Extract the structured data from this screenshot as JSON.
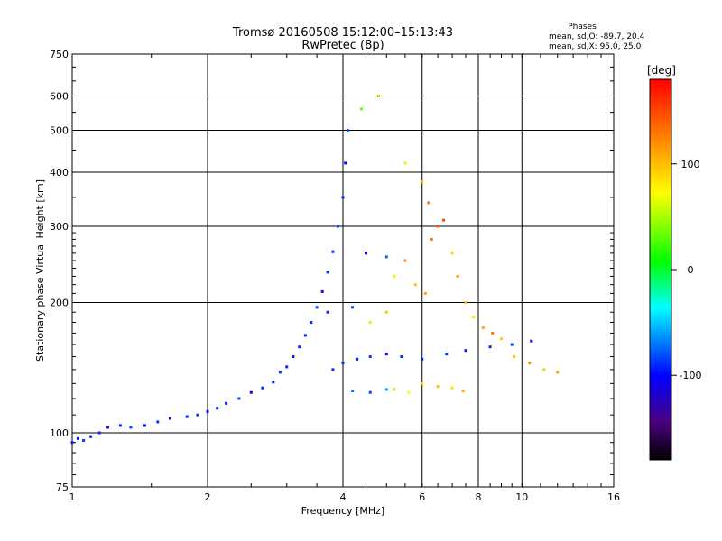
{
  "chart_data": {
    "type": "scatter",
    "title": "Tromsø 20160508 15:12:00–15:13:43",
    "subtitle": "RwPretec (8p)",
    "xlabel": "Frequency [MHz]",
    "ylabel": "Stationary phase Virtual Height [km]",
    "x_scale": "log",
    "y_scale": "log",
    "xlim": [
      1,
      16
    ],
    "ylim": [
      75,
      750
    ],
    "x_ticks": [
      1,
      2,
      4,
      6,
      8,
      10,
      16
    ],
    "y_ticks": [
      75,
      100,
      200,
      300,
      400,
      500,
      600,
      750
    ],
    "x_gridlines": [
      2,
      4,
      6,
      8,
      10
    ],
    "y_gridlines": [
      100,
      200,
      300,
      400,
      500,
      600
    ],
    "grid": true,
    "phases_box": {
      "title": "Phases",
      "line1": "mean, sd,O: -89.7, 20.4",
      "line2": "mean, sd,X:  95.0, 25.0"
    },
    "colorbar": {
      "label": "[deg]",
      "range": [
        -180,
        180
      ],
      "ticks": [
        100,
        0,
        -100
      ],
      "colors": [
        "#000000",
        "#4a0080",
        "#0000ff",
        "#00ffff",
        "#00ff00",
        "#ffff00",
        "#ff8000",
        "#ff0000"
      ]
    },
    "colors": {
      "o_mode": "#1a2cf0",
      "x_mode": "#f0b800"
    },
    "series": [
      {
        "points": [
          [
            1.0,
            95,
            -90
          ],
          [
            1.03,
            97,
            -95
          ],
          [
            1.06,
            96,
            -85
          ],
          [
            1.1,
            98,
            -92
          ],
          [
            1.15,
            100,
            -88
          ],
          [
            1.2,
            103,
            -95
          ],
          [
            1.28,
            104,
            -90
          ],
          [
            1.35,
            103,
            -82
          ],
          [
            1.45,
            104,
            -97
          ],
          [
            1.55,
            106,
            -86
          ],
          [
            1.65,
            108,
            -93
          ],
          [
            1.8,
            109,
            -91
          ],
          [
            1.9,
            110,
            -85
          ],
          [
            2.0,
            112,
            -96
          ],
          [
            2.1,
            114,
            -88
          ],
          [
            2.2,
            117,
            -92
          ],
          [
            2.35,
            120,
            -84
          ],
          [
            2.5,
            124,
            -98
          ],
          [
            2.65,
            127,
            -89
          ],
          [
            2.8,
            131,
            -93
          ],
          [
            2.9,
            138,
            -86
          ],
          [
            3.0,
            142,
            -91
          ],
          [
            3.1,
            150,
            -95
          ],
          [
            3.2,
            158,
            -87
          ],
          [
            3.3,
            168,
            -93
          ],
          [
            3.4,
            180,
            -90
          ],
          [
            3.5,
            195,
            -84
          ],
          [
            3.6,
            212,
            -96
          ],
          [
            3.7,
            235,
            -88
          ],
          [
            3.8,
            262,
            -91
          ],
          [
            3.9,
            300,
            -85
          ],
          [
            4.0,
            350,
            -92
          ],
          [
            4.05,
            420,
            -97
          ],
          [
            4.1,
            500,
            -80
          ],
          [
            3.8,
            140,
            -90
          ],
          [
            4.0,
            145,
            -88
          ],
          [
            4.3,
            148,
            -93
          ],
          [
            4.6,
            150,
            -86
          ],
          [
            5.0,
            152,
            -95
          ],
          [
            5.4,
            150,
            -89
          ],
          [
            6.0,
            148,
            -92
          ],
          [
            6.8,
            152,
            -87
          ],
          [
            7.5,
            155,
            -94
          ],
          [
            8.5,
            158,
            -90
          ],
          [
            9.5,
            160,
            -85
          ],
          [
            10.5,
            163,
            -97
          ],
          [
            4.2,
            125,
            -70
          ],
          [
            4.6,
            124,
            -80
          ],
          [
            5.0,
            126,
            -60
          ],
          [
            3.7,
            190,
            -90
          ],
          [
            4.2,
            195,
            -84
          ],
          [
            4.5,
            260,
            -100
          ],
          [
            5.0,
            255,
            -75
          ]
        ]
      },
      {
        "points": [
          [
            4.6,
            180,
            60
          ],
          [
            5.0,
            190,
            100
          ],
          [
            5.2,
            230,
            80
          ],
          [
            5.5,
            250,
            120
          ],
          [
            5.8,
            220,
            95
          ],
          [
            6.1,
            210,
            110
          ],
          [
            6.3,
            280,
            130
          ],
          [
            6.5,
            300,
            140
          ],
          [
            6.7,
            310,
            150
          ],
          [
            7.0,
            260,
            90
          ],
          [
            7.2,
            230,
            120
          ],
          [
            7.5,
            200,
            100
          ],
          [
            7.8,
            185,
            80
          ],
          [
            8.2,
            175,
            110
          ],
          [
            8.6,
            170,
            130
          ],
          [
            9.0,
            165,
            90
          ],
          [
            9.6,
            150,
            100
          ],
          [
            10.4,
            145,
            120
          ],
          [
            11.2,
            140,
            95
          ],
          [
            12.0,
            138,
            110
          ],
          [
            6.0,
            130,
            90
          ],
          [
            6.5,
            128,
            100
          ],
          [
            7.0,
            127,
            85
          ],
          [
            7.4,
            125,
            110
          ],
          [
            5.6,
            124,
            70
          ],
          [
            5.2,
            126,
            90
          ],
          [
            6.2,
            340,
            130
          ],
          [
            6.0,
            380,
            100
          ],
          [
            5.5,
            420,
            80
          ],
          [
            4.8,
            600,
            50
          ],
          [
            4.4,
            560,
            30
          ]
        ]
      }
    ]
  }
}
